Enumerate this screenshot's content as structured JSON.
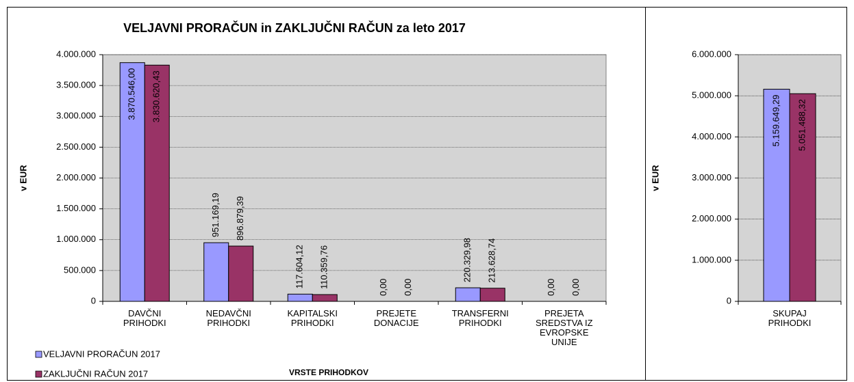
{
  "chart_data": [
    {
      "type": "bar",
      "title": "VELJAVNI PRORAČUN in ZAKLJUČNI RAČUN za leto 2017",
      "x_label": "VRSTE PRIHODKOV",
      "y_label": "v EUR",
      "categories": [
        "DAVČNI\nPRIHODKI",
        "NEDAVČNI\nPRIHODKI",
        "KAPITALSKI\nPRIHODKI",
        "PREJETE\nDONACIJE",
        "TRANSFERNI\nPRIHODKI",
        "PREJETA\nSREDSTVA IZ\nEVROPSKE\nUNIJE"
      ],
      "series": [
        {
          "name": "VELJAVNI PRORAČUN 2017",
          "color": "#9999ff",
          "values": [
            3870546.0,
            951169.19,
            117604.12,
            0,
            220329.98,
            0
          ],
          "value_labels": [
            "3.870.546,00",
            "951.169,19",
            "117.604,12",
            "0,00",
            "220.329,98",
            "0,00"
          ]
        },
        {
          "name": "ZAKLJUČNI RAČUN 2017",
          "color": "#993366",
          "values": [
            3830620.43,
            896879.39,
            110359.76,
            0,
            213628.74,
            0
          ],
          "value_labels": [
            "3.830.620,43",
            "896.879,39",
            "110.359,76",
            "0,00",
            "213.628,74",
            "0,00"
          ]
        }
      ],
      "ylim": [
        0,
        4000000
      ],
      "yticks": [
        0,
        {
          "value": 500000,
          "label": "500.000"
        },
        {
          "value": 1000000,
          "label": "1.000.000"
        },
        {
          "value": 1500000,
          "label": "1.500.000"
        },
        {
          "value": 2000000,
          "label": "2.000.000"
        },
        {
          "value": 2500000,
          "label": "2.500.000"
        },
        {
          "value": 3000000,
          "label": "3.000.000"
        },
        {
          "value": 3500000,
          "label": "3.500.000"
        },
        {
          "value": 4000000,
          "label": "4.000.000"
        }
      ],
      "grid": true,
      "legend": "bottom-left"
    },
    {
      "type": "bar",
      "y_label": "v EUR",
      "categories": [
        "SKUPAJ\nPRIHODKI"
      ],
      "series": [
        {
          "color": "#9999ff",
          "values": [
            5159649.29
          ],
          "value_labels": [
            "5.159.649,29"
          ]
        },
        {
          "color": "#993366",
          "values": [
            5051488.32
          ],
          "value_labels": [
            "5.051.488,32"
          ]
        }
      ],
      "ylim": [
        0,
        6000000
      ],
      "yticks": [
        0,
        {
          "value": 1000000,
          "label": "1.000.000"
        },
        {
          "value": 2000000,
          "label": "2.000.000"
        },
        {
          "value": 3000000,
          "label": "3.000.000"
        },
        {
          "value": 4000000,
          "label": "4.000.000"
        },
        {
          "value": 5000000,
          "label": "5.000.000"
        },
        {
          "value": 6000000,
          "label": "6.000.000"
        }
      ],
      "grid": true
    }
  ]
}
